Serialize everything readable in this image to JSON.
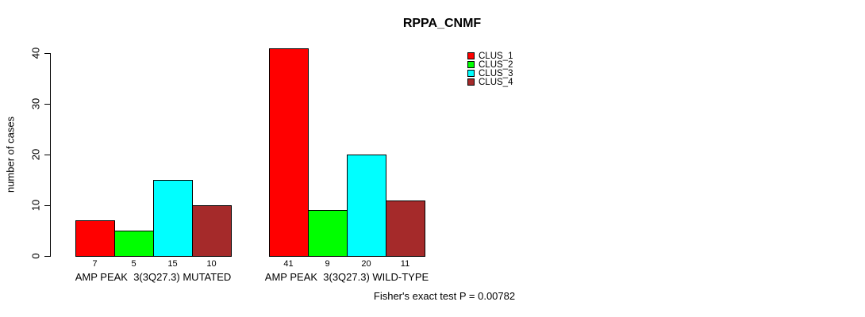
{
  "chart_data": {
    "type": "bar",
    "title": "RPPA_CNMF",
    "xlabel": "",
    "ylabel": "number of cases",
    "ylim": [
      0,
      40
    ],
    "yticks": [
      0,
      10,
      20,
      30,
      40
    ],
    "grid": false,
    "background_color": "#FFFFFF",
    "bar_border_color": "#000000",
    "categories": [
      "AMP PEAK  3(3Q27.3) MUTATED",
      "AMP PEAK  3(3Q27.3) WILD-TYPE"
    ],
    "series": [
      {
        "name": "CLUS_1",
        "color": "#FF0000",
        "values": [
          7,
          41
        ]
      },
      {
        "name": "CLUS_2",
        "color": "#00FF00",
        "values": [
          5,
          9
        ]
      },
      {
        "name": "CLUS_3",
        "color": "#00FFFF",
        "values": [
          15,
          20
        ]
      },
      {
        "name": "CLUS_4",
        "color": "#A52A2A",
        "values": [
          10,
          11
        ]
      }
    ],
    "bar_value_labels": [
      [
        7,
        5,
        15,
        10
      ],
      [
        41,
        9,
        20,
        11
      ]
    ],
    "legend": {
      "position": "top-right",
      "entries": [
        "CLUS_1",
        "CLUS_2",
        "CLUS_3",
        "CLUS_4"
      ]
    },
    "annotation": "Fisher's exact test P = 0.00782"
  }
}
